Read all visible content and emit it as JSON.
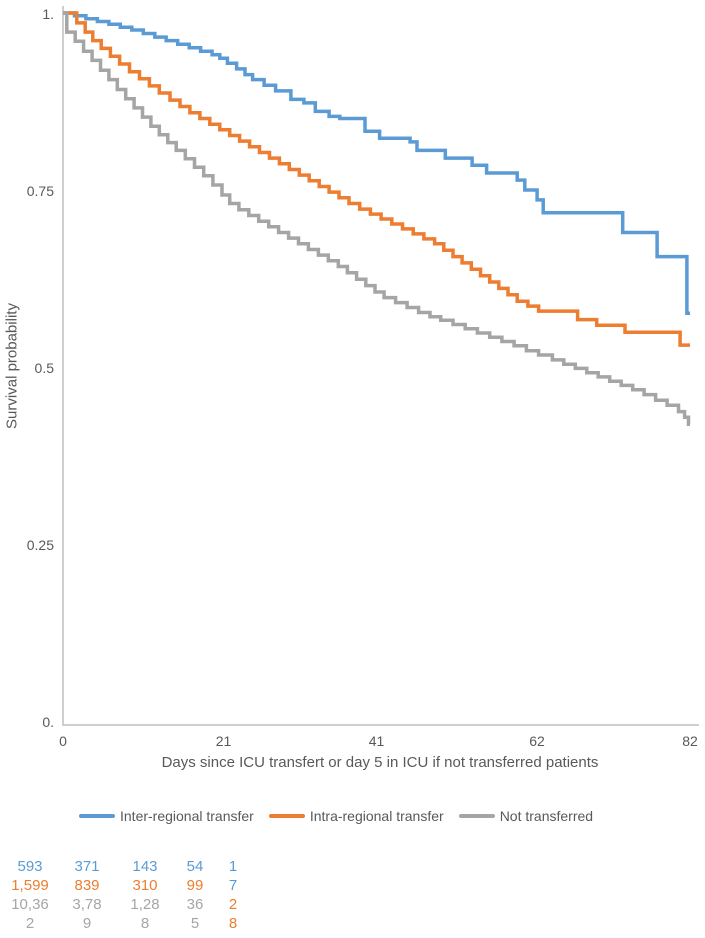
{
  "chart_data": {
    "type": "line",
    "subtype": "kaplan-meier-step",
    "title": "",
    "xlabel": "Days since ICU transfert or day 5 in ICU if not transferred patients",
    "ylabel": "Survival probability",
    "xlim": [
      0,
      82
    ],
    "ylim": [
      0,
      1
    ],
    "grid": false,
    "legend_position": "bottom",
    "axis_color": "#BFBFBF",
    "text_color": "#595959",
    "x_ticks": [
      {
        "value": 0,
        "label": "0"
      },
      {
        "value": 21,
        "label": "21"
      },
      {
        "value": 41,
        "label": "41"
      },
      {
        "value": 62,
        "label": "62"
      },
      {
        "value": 82,
        "label": "82"
      }
    ],
    "y_ticks": [
      {
        "value": 1,
        "label": "1."
      },
      {
        "value": 0.75,
        "label": "0.75"
      },
      {
        "value": 0.5,
        "label": "0.5"
      },
      {
        "value": 0.25,
        "label": "0.25"
      },
      {
        "value": 0,
        "label": "0."
      }
    ],
    "series": [
      {
        "name": "Inter-regional transfer",
        "color": "#5B9BD5",
        "points": [
          [
            0,
            1.0
          ],
          [
            1.5,
            0.996
          ],
          [
            3,
            0.992
          ],
          [
            4.5,
            0.988
          ],
          [
            6,
            0.984
          ],
          [
            7.5,
            0.98
          ],
          [
            9,
            0.976
          ],
          [
            10.5,
            0.971
          ],
          [
            12,
            0.966
          ],
          [
            13.5,
            0.961
          ],
          [
            15,
            0.956
          ],
          [
            16.5,
            0.951
          ],
          [
            18,
            0.946
          ],
          [
            19.5,
            0.941
          ],
          [
            20.5,
            0.936
          ],
          [
            21.5,
            0.929
          ],
          [
            22.7,
            0.921
          ],
          [
            23.8,
            0.913
          ],
          [
            24.8,
            0.906
          ],
          [
            26.3,
            0.898
          ],
          [
            27.8,
            0.89
          ],
          [
            29.8,
            0.878
          ],
          [
            31.5,
            0.873
          ],
          [
            33,
            0.861
          ],
          [
            34.8,
            0.854
          ],
          [
            36.2,
            0.851
          ],
          [
            39.5,
            0.833
          ],
          [
            41.4,
            0.823
          ],
          [
            45.4,
            0.818
          ],
          [
            46.3,
            0.806
          ],
          [
            50,
            0.795
          ],
          [
            53.5,
            0.785
          ],
          [
            55.4,
            0.774
          ],
          [
            59.4,
            0.764
          ],
          [
            60.4,
            0.75
          ],
          [
            62,
            0.736
          ],
          [
            62.8,
            0.718
          ],
          [
            73.2,
            0.69
          ],
          [
            77.7,
            0.656
          ],
          [
            81.6,
            0.576
          ],
          [
            82,
            0.576
          ]
        ]
      },
      {
        "name": "Intra-regional transfer",
        "color": "#ED7D31",
        "points": [
          [
            0,
            1.0
          ],
          [
            1.8,
            0.986
          ],
          [
            2.9,
            0.973
          ],
          [
            3.9,
            0.961
          ],
          [
            5,
            0.95
          ],
          [
            6.2,
            0.939
          ],
          [
            7.4,
            0.928
          ],
          [
            8.7,
            0.917
          ],
          [
            10,
            0.907
          ],
          [
            11.3,
            0.897
          ],
          [
            12.6,
            0.887
          ],
          [
            14,
            0.877
          ],
          [
            15.3,
            0.868
          ],
          [
            16.6,
            0.859
          ],
          [
            17.9,
            0.851
          ],
          [
            19.2,
            0.843
          ],
          [
            20.5,
            0.835
          ],
          [
            21.8,
            0.827
          ],
          [
            23.1,
            0.819
          ],
          [
            24.4,
            0.811
          ],
          [
            25.7,
            0.803
          ],
          [
            27,
            0.795
          ],
          [
            28.3,
            0.787
          ],
          [
            29.6,
            0.779
          ],
          [
            30.9,
            0.771
          ],
          [
            32.2,
            0.763
          ],
          [
            33.5,
            0.755
          ],
          [
            34.8,
            0.747
          ],
          [
            36.1,
            0.739
          ],
          [
            37.4,
            0.731
          ],
          [
            38.8,
            0.723
          ],
          [
            40.2,
            0.716
          ],
          [
            41.6,
            0.709
          ],
          [
            43,
            0.702
          ],
          [
            44.4,
            0.695
          ],
          [
            45.8,
            0.688
          ],
          [
            47.2,
            0.681
          ],
          [
            48.6,
            0.674
          ],
          [
            49.8,
            0.665
          ],
          [
            51,
            0.656
          ],
          [
            52.2,
            0.647
          ],
          [
            53.4,
            0.638
          ],
          [
            54.6,
            0.629
          ],
          [
            55.8,
            0.62
          ],
          [
            57,
            0.611
          ],
          [
            58.2,
            0.602
          ],
          [
            59.4,
            0.593
          ],
          [
            60.8,
            0.586
          ],
          [
            62.2,
            0.579
          ],
          [
            67.3,
            0.567
          ],
          [
            69.8,
            0.559
          ],
          [
            73.5,
            0.549
          ],
          [
            80.7,
            0.531
          ],
          [
            82,
            0.531
          ]
        ]
      },
      {
        "name": "Not transferred",
        "color": "#A5A5A5",
        "points": [
          [
            0,
            1.0
          ],
          [
            0.5,
            0.973
          ],
          [
            1.6,
            0.96
          ],
          [
            2.7,
            0.946
          ],
          [
            3.8,
            0.933
          ],
          [
            4.9,
            0.919
          ],
          [
            6,
            0.906
          ],
          [
            7.1,
            0.892
          ],
          [
            8.2,
            0.879
          ],
          [
            9.3,
            0.866
          ],
          [
            10.4,
            0.853
          ],
          [
            11.5,
            0.84
          ],
          [
            12.6,
            0.828
          ],
          [
            13.7,
            0.817
          ],
          [
            14.8,
            0.806
          ],
          [
            16,
            0.794
          ],
          [
            17.2,
            0.782
          ],
          [
            18.4,
            0.77
          ],
          [
            19.6,
            0.757
          ],
          [
            20.8,
            0.743
          ],
          [
            21.8,
            0.731
          ],
          [
            23,
            0.722
          ],
          [
            24.3,
            0.714
          ],
          [
            25.6,
            0.706
          ],
          [
            26.9,
            0.698
          ],
          [
            28.2,
            0.69
          ],
          [
            29.5,
            0.682
          ],
          [
            30.8,
            0.674
          ],
          [
            32.1,
            0.666
          ],
          [
            33.4,
            0.658
          ],
          [
            34.7,
            0.65
          ],
          [
            36,
            0.642
          ],
          [
            37.2,
            0.633
          ],
          [
            38.4,
            0.624
          ],
          [
            39.6,
            0.615
          ],
          [
            40.8,
            0.606
          ],
          [
            42,
            0.598
          ],
          [
            43.5,
            0.591
          ],
          [
            45,
            0.584
          ],
          [
            46.5,
            0.577
          ],
          [
            48,
            0.571
          ],
          [
            49.4,
            0.566
          ],
          [
            51,
            0.56
          ],
          [
            52.6,
            0.554
          ],
          [
            54.2,
            0.548
          ],
          [
            55.8,
            0.542
          ],
          [
            57.4,
            0.536
          ],
          [
            59,
            0.53
          ],
          [
            60.6,
            0.523
          ],
          [
            62.2,
            0.517
          ],
          [
            64,
            0.51
          ],
          [
            65.5,
            0.504
          ],
          [
            67,
            0.498
          ],
          [
            68.5,
            0.492
          ],
          [
            70,
            0.486
          ],
          [
            71.5,
            0.48
          ],
          [
            73,
            0.474
          ],
          [
            74.5,
            0.468
          ],
          [
            76,
            0.461
          ],
          [
            77.5,
            0.453
          ],
          [
            79,
            0.446
          ],
          [
            80.5,
            0.437
          ],
          [
            81.3,
            0.429
          ],
          [
            81.8,
            0.419
          ],
          [
            82,
            0.419
          ]
        ]
      }
    ]
  },
  "risk_table": {
    "rows": [
      {
        "cells": [
          {
            "text": "593",
            "color": "#5B9BD5"
          },
          {
            "text": "371",
            "color": "#5B9BD5"
          },
          {
            "text": "143",
            "color": "#5B9BD5"
          },
          {
            "text": "54",
            "color": "#5B9BD5"
          },
          {
            "text": "1",
            "color": "#5B9BD5"
          }
        ]
      },
      {
        "cells": [
          {
            "text": "1,599",
            "color": "#ED7D31"
          },
          {
            "text": "839",
            "color": "#ED7D31"
          },
          {
            "text": "310",
            "color": "#ED7D31"
          },
          {
            "text": "99",
            "color": "#ED7D31"
          },
          {
            "text": "7",
            "color": "#5B9BD5"
          }
        ]
      },
      {
        "cells": [
          {
            "text": "10,36",
            "color": "#A5A5A5"
          },
          {
            "text": "3,78",
            "color": "#A5A5A5"
          },
          {
            "text": "1,28",
            "color": "#A5A5A5"
          },
          {
            "text": "36",
            "color": "#A5A5A5"
          },
          {
            "text": "2",
            "color": "#ED7D31"
          }
        ]
      },
      {
        "cells": [
          {
            "text": "2",
            "color": "#A5A5A5"
          },
          {
            "text": "9",
            "color": "#A5A5A5"
          },
          {
            "text": "8",
            "color": "#A5A5A5"
          },
          {
            "text": "5",
            "color": "#A5A5A5"
          },
          {
            "text": "8",
            "color": "#ED7D31"
          }
        ]
      }
    ]
  }
}
